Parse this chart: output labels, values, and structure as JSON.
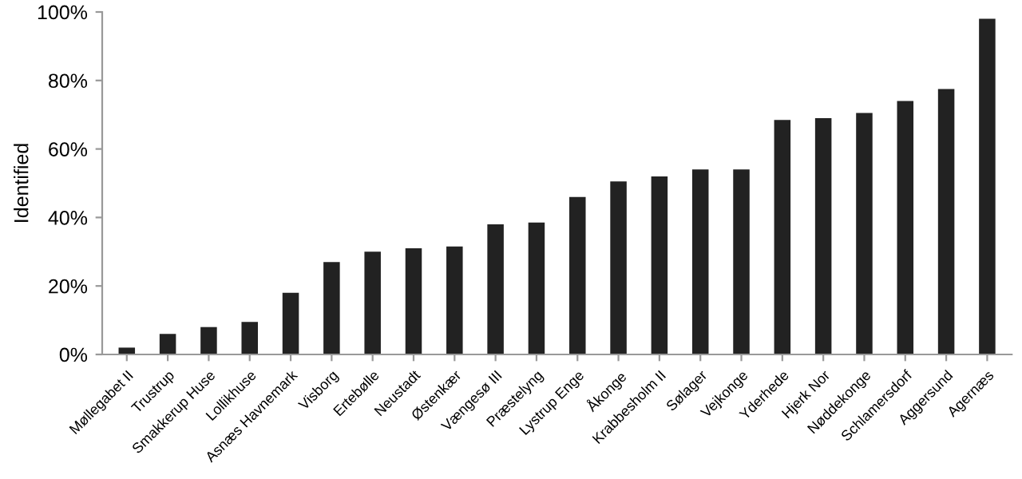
{
  "chart_data": {
    "type": "bar",
    "ylabel": "Identified",
    "categories": [
      "Møllegabet II",
      "Trustrup",
      "Smakkerup Huse",
      "Lollikhuse",
      "Asnæs Havnemark",
      "Visborg",
      "Ertebølle",
      "Neustadt",
      "Østenkær",
      "Vængesø III",
      "Præstelyng",
      "Lystrup Enge",
      "Åkonge",
      "Krabbesholm II",
      "Sølager",
      "Vejkonge",
      "Yderhede",
      "Hjerk Nor",
      "Nøddekonge",
      "Schlamersdorf",
      "Aggersund",
      "Agernæs"
    ],
    "values": [
      2,
      6,
      8,
      9.5,
      18,
      27,
      30,
      31,
      31.5,
      38,
      38.5,
      46,
      50.5,
      52,
      54,
      54,
      68.5,
      69,
      70.5,
      74,
      77.5,
      98
    ],
    "color": "#222222",
    "ylim": [
      0,
      100
    ],
    "yticks": [
      {
        "value": 0,
        "label": "0%"
      },
      {
        "value": 20,
        "label": "20%"
      },
      {
        "value": 40,
        "label": "40%"
      },
      {
        "value": 60,
        "label": "60%"
      },
      {
        "value": 80,
        "label": "80%"
      },
      {
        "value": 100,
        "label": "100%"
      }
    ],
    "grid": false
  }
}
